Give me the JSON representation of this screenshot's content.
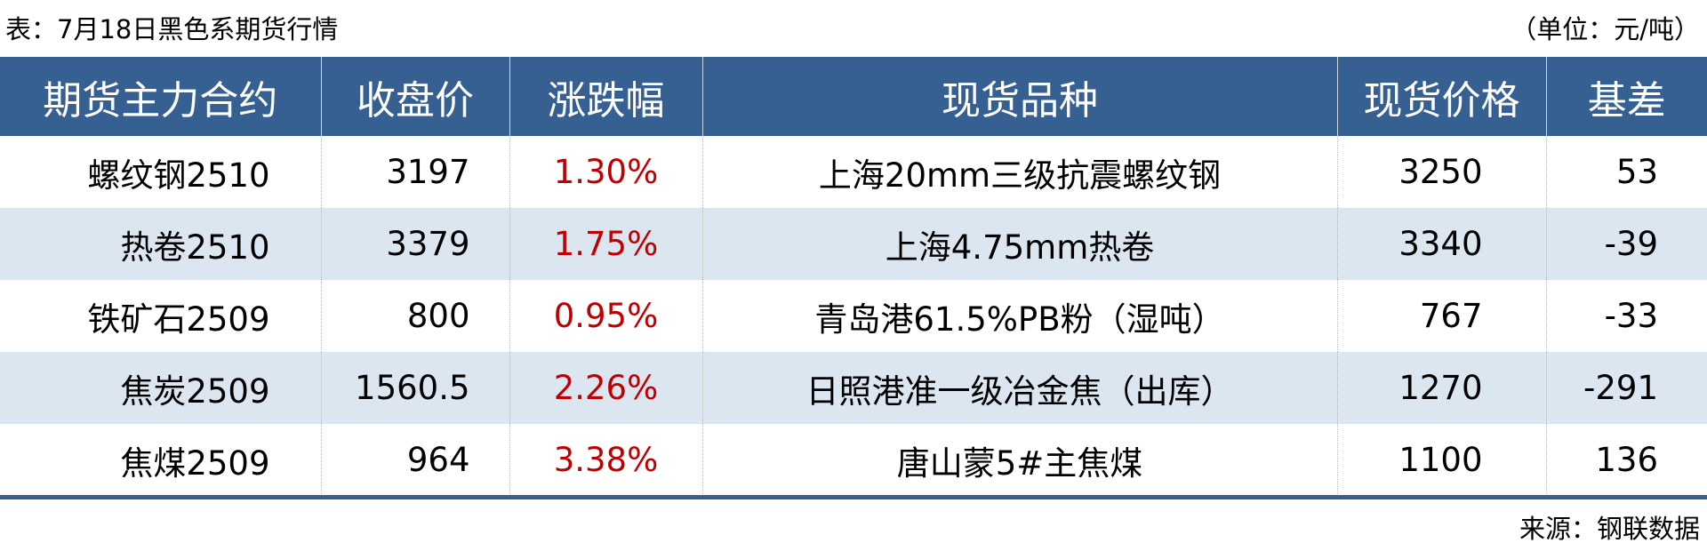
{
  "title": "表：7月18日黑色系期货行情",
  "unit": "（单位：元/吨）",
  "colors": {
    "header_bg": "#376092",
    "alt_row_bg": "#dce6f1",
    "change_text": "#c00000",
    "rule": "#376092"
  },
  "table": {
    "headers": [
      "期货主力合约",
      "收盘价",
      "涨跌幅",
      "现货品种",
      "现货价格",
      "基差"
    ],
    "rows": [
      [
        "螺纹钢2510",
        "3197",
        "1.30%",
        "上海20mm三级抗震螺纹钢",
        "3250",
        "53"
      ],
      [
        "热卷2510",
        "3379",
        "1.75%",
        "上海4.75mm热卷",
        "3340",
        "-39"
      ],
      [
        "铁矿石2509",
        "800",
        "0.95%",
        "青岛港61.5%PB粉（湿吨）",
        "767",
        "-33"
      ],
      [
        "焦炭2509",
        "1560.5",
        "2.26%",
        "日照港准一级冶金焦（出库）",
        "1270",
        "-291"
      ],
      [
        "焦煤2509",
        "964",
        "3.38%",
        "唐山蒙5#主焦煤",
        "1100",
        "136"
      ]
    ]
  },
  "source": "来源：钢联数据"
}
